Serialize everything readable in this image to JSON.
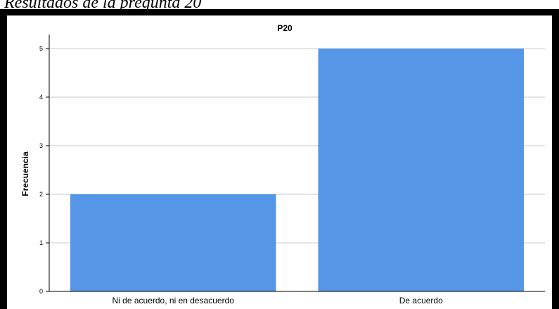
{
  "caption": "Resultados de la pregunta 20",
  "chart_data": {
    "type": "bar",
    "title": "P20",
    "xlabel": "",
    "ylabel": "Frecuencia",
    "categories": [
      "Ni de acuerdo, ni en desacuerdo",
      "De acuerdo"
    ],
    "values": [
      2,
      5
    ],
    "ylim": [
      0,
      5
    ],
    "yticks": [
      0,
      1,
      2,
      3,
      4,
      5
    ],
    "grid": true,
    "bar_color": "#5596e6"
  }
}
